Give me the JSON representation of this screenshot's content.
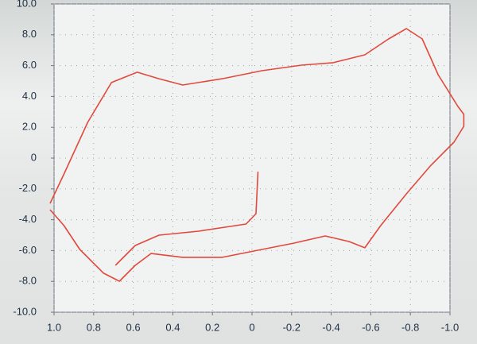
{
  "chart_data": {
    "type": "line",
    "xlim": [
      1.0,
      -1.0
    ],
    "ylim": [
      -10.0,
      10.0
    ],
    "xticks": [
      {
        "value": 1.0,
        "label": "1.0"
      },
      {
        "value": 0.8,
        "label": "0.8"
      },
      {
        "value": 0.6,
        "label": "0.6"
      },
      {
        "value": 0.4,
        "label": "0.4"
      },
      {
        "value": 0.2,
        "label": "0.2"
      },
      0,
      {
        "value": -0.2,
        "label": "-0.2"
      },
      {
        "value": -0.4,
        "label": "-0.4"
      },
      {
        "value": -0.6,
        "label": "-0.6"
      },
      {
        "value": -0.8,
        "label": "-0.8"
      },
      {
        "value": -1.0,
        "label": "-1.0"
      }
    ],
    "yticks": [
      {
        "value": 10.0,
        "label": "10.0"
      },
      {
        "value": 8.0,
        "label": "8.0"
      },
      {
        "value": 6.0,
        "label": "6.0"
      },
      {
        "value": 4.0,
        "label": "4.0"
      },
      {
        "value": 2.0,
        "label": "2.0"
      },
      0,
      {
        "value": -2.0,
        "label": "-2.0"
      },
      {
        "value": -4.0,
        "label": "-4.0"
      },
      {
        "value": -6.0,
        "label": "-6.0"
      },
      {
        "value": -8.0,
        "label": "-8.0"
      },
      {
        "value": -10.0,
        "label": "-10.0"
      }
    ],
    "grid": true,
    "series": [
      {
        "color": "#e2483c",
        "x": [
          1.02,
          0.95,
          0.83,
          0.71,
          0.58,
          0.47,
          0.35,
          0.15,
          -0.05,
          -0.25,
          -0.41,
          -0.57,
          -0.69,
          -0.78,
          -0.86,
          -0.94,
          -1.04,
          -1.07,
          -1.07,
          -1.02,
          -0.9,
          -0.78,
          -0.65,
          -0.57,
          -0.49,
          -0.37,
          -0.21,
          -0.05,
          0.15,
          0.35,
          0.51,
          0.59,
          0.67,
          0.75,
          0.87,
          0.95,
          1.02
        ],
        "values": [
          -2.94,
          -1.03,
          2.32,
          4.9,
          5.57,
          5.15,
          4.74,
          5.15,
          5.67,
          6.03,
          6.19,
          6.7,
          7.73,
          8.4,
          7.73,
          5.41,
          3.35,
          2.84,
          2.06,
          1.03,
          -0.52,
          -2.32,
          -4.38,
          -5.82,
          -5.41,
          -5.05,
          -5.52,
          -5.93,
          -6.44,
          -6.44,
          -6.19,
          -6.96,
          -7.99,
          -7.47,
          -5.93,
          -4.38,
          -3.35
        ]
      },
      {
        "color": "#e2483c",
        "x": [
          -0.03,
          -0.02,
          0.03,
          0.27,
          0.47,
          0.59,
          0.69
        ],
        "values": [
          -0.88,
          -3.61,
          -4.28,
          -4.74,
          -5.0,
          -5.67,
          -6.96
        ]
      }
    ]
  }
}
